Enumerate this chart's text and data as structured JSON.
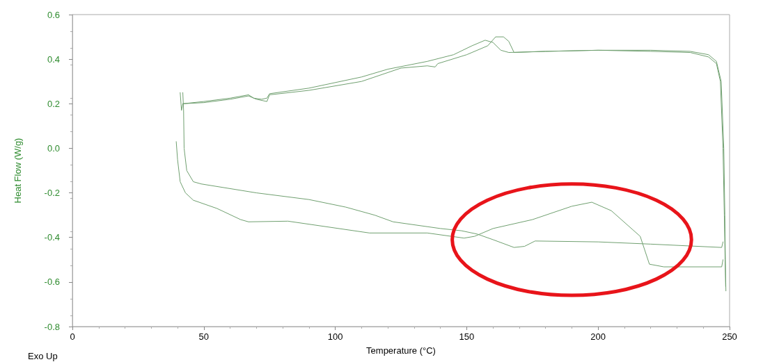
{
  "chart_data": {
    "type": "line",
    "xlabel": "Temperature (°C)",
    "ylabel": "Heat Flow (W/g)",
    "annotations": [
      "Exo Up"
    ],
    "xlim": [
      0,
      250
    ],
    "xticks": [
      0,
      50,
      100,
      150,
      200,
      250
    ],
    "ylim": [
      -0.8,
      0.6
    ],
    "yticks": [
      -0.8,
      -0.6,
      -0.4,
      -0.2,
      {
        "value": 0,
        "label": "0.0"
      },
      0.2,
      0.4,
      0.6
    ],
    "grid": false,
    "marker": "none",
    "line_style": "solid",
    "series": [
      {
        "color": "#6f9f6f",
        "x": [
          41,
          41.5,
          42,
          50,
          60,
          67,
          69,
          72,
          74,
          75,
          90,
          110,
          120,
          135,
          145,
          152,
          157,
          160,
          163,
          166,
          180,
          200,
          220,
          235,
          242,
          245,
          246.5,
          247.5,
          248,
          248.3,
          248.5
        ],
        "values": [
          0.25,
          0.17,
          0.2,
          0.21,
          0.225,
          0.24,
          0.225,
          0.22,
          0.225,
          0.245,
          0.27,
          0.32,
          0.355,
          0.39,
          0.42,
          0.46,
          0.485,
          0.475,
          0.44,
          0.43,
          0.435,
          0.44,
          0.435,
          0.43,
          0.41,
          0.38,
          0.3,
          0,
          -0.3,
          -0.5,
          -0.62
        ]
      },
      {
        "color": "#6f9f6f",
        "x": [
          42,
          50,
          60,
          67,
          70,
          74,
          75,
          90,
          110,
          125,
          135,
          138,
          139,
          150,
          158,
          161,
          164,
          166,
          168,
          180,
          200,
          220,
          235,
          242,
          245,
          246.8,
          247.8,
          248.2,
          248.4,
          248.6
        ],
        "values": [
          0.2,
          0.205,
          0.22,
          0.235,
          0.22,
          0.21,
          0.24,
          0.26,
          0.3,
          0.36,
          0.37,
          0.365,
          0.38,
          0.42,
          0.46,
          0.5,
          0.5,
          0.48,
          0.43,
          0.435,
          0.44,
          0.44,
          0.435,
          0.42,
          0.39,
          0.3,
          0,
          -0.3,
          -0.5,
          -0.64
        ]
      },
      {
        "color": "#6f9f6f",
        "x": [
          42,
          42.3,
          42.5,
          43.5,
          46,
          49,
          70,
          90,
          104,
          115,
          122,
          140,
          148,
          154,
          160,
          168,
          172,
          176,
          200,
          220,
          247,
          247.5
        ],
        "values": [
          0.25,
          0.17,
          0,
          -0.1,
          -0.15,
          -0.16,
          -0.2,
          -0.23,
          -0.264,
          -0.3,
          -0.33,
          -0.36,
          -0.37,
          -0.385,
          -0.41,
          -0.445,
          -0.44,
          -0.416,
          -0.42,
          -0.43,
          -0.445,
          -0.42
        ]
      },
      {
        "color": "#6f9f6f",
        "x": [
          39.5,
          40,
          41,
          43,
          46,
          55,
          64,
          67,
          82,
          113,
          135,
          149,
          153,
          160,
          175,
          190,
          197.6,
          205,
          216,
          219.5,
          225,
          247,
          247.5
        ],
        "values": [
          0.03,
          -0.05,
          -0.15,
          -0.2,
          -0.233,
          -0.27,
          -0.32,
          -0.33,
          -0.327,
          -0.38,
          -0.38,
          -0.403,
          -0.395,
          -0.36,
          -0.32,
          -0.26,
          -0.242,
          -0.28,
          -0.395,
          -0.52,
          -0.532,
          -0.532,
          -0.5
        ]
      }
    ]
  }
}
